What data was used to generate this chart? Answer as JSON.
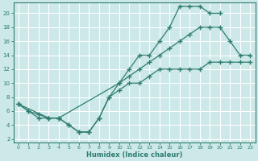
{
  "xlabel": "Humidex (Indice chaleur)",
  "bg_color": "#cce8e8",
  "grid_color": "#ffffff",
  "line_color": "#2e7d6e",
  "xlim": [
    -0.5,
    23.5
  ],
  "ylim": [
    1.5,
    21.5
  ],
  "xticks": [
    0,
    1,
    2,
    3,
    4,
    5,
    6,
    7,
    8,
    9,
    10,
    11,
    12,
    13,
    14,
    15,
    16,
    17,
    18,
    19,
    20,
    21,
    22,
    23
  ],
  "yticks": [
    2,
    4,
    6,
    8,
    10,
    12,
    14,
    16,
    18,
    20
  ],
  "line1_x": [
    0,
    1,
    2,
    3,
    4,
    5,
    6,
    7,
    8,
    9,
    10,
    11,
    12,
    13,
    14,
    15,
    16,
    17,
    18,
    19,
    20
  ],
  "line1_y": [
    7,
    6,
    5,
    5,
    5,
    4,
    3,
    3,
    5,
    8,
    10,
    12,
    14,
    14,
    16,
    18,
    21,
    21,
    21,
    20,
    20
  ],
  "line2_x": [
    0,
    3,
    4,
    10,
    11,
    12,
    13,
    14,
    15,
    16,
    17,
    18,
    19,
    20,
    21,
    22,
    23
  ],
  "line2_y": [
    7,
    5,
    5,
    10,
    11,
    12,
    13,
    14,
    15,
    16,
    17,
    18,
    18,
    18,
    16,
    14,
    14
  ],
  "line3_x": [
    0,
    1,
    2,
    3,
    4,
    5,
    6,
    7,
    8,
    9,
    10,
    11,
    12,
    13,
    14,
    15,
    16,
    17,
    18,
    19,
    20,
    21,
    22,
    23
  ],
  "line3_y": [
    7,
    6,
    5.5,
    5,
    5,
    4,
    3,
    3,
    5,
    8,
    9,
    10,
    10,
    11,
    12,
    12,
    12,
    12,
    12,
    13,
    13,
    13,
    13,
    13
  ]
}
